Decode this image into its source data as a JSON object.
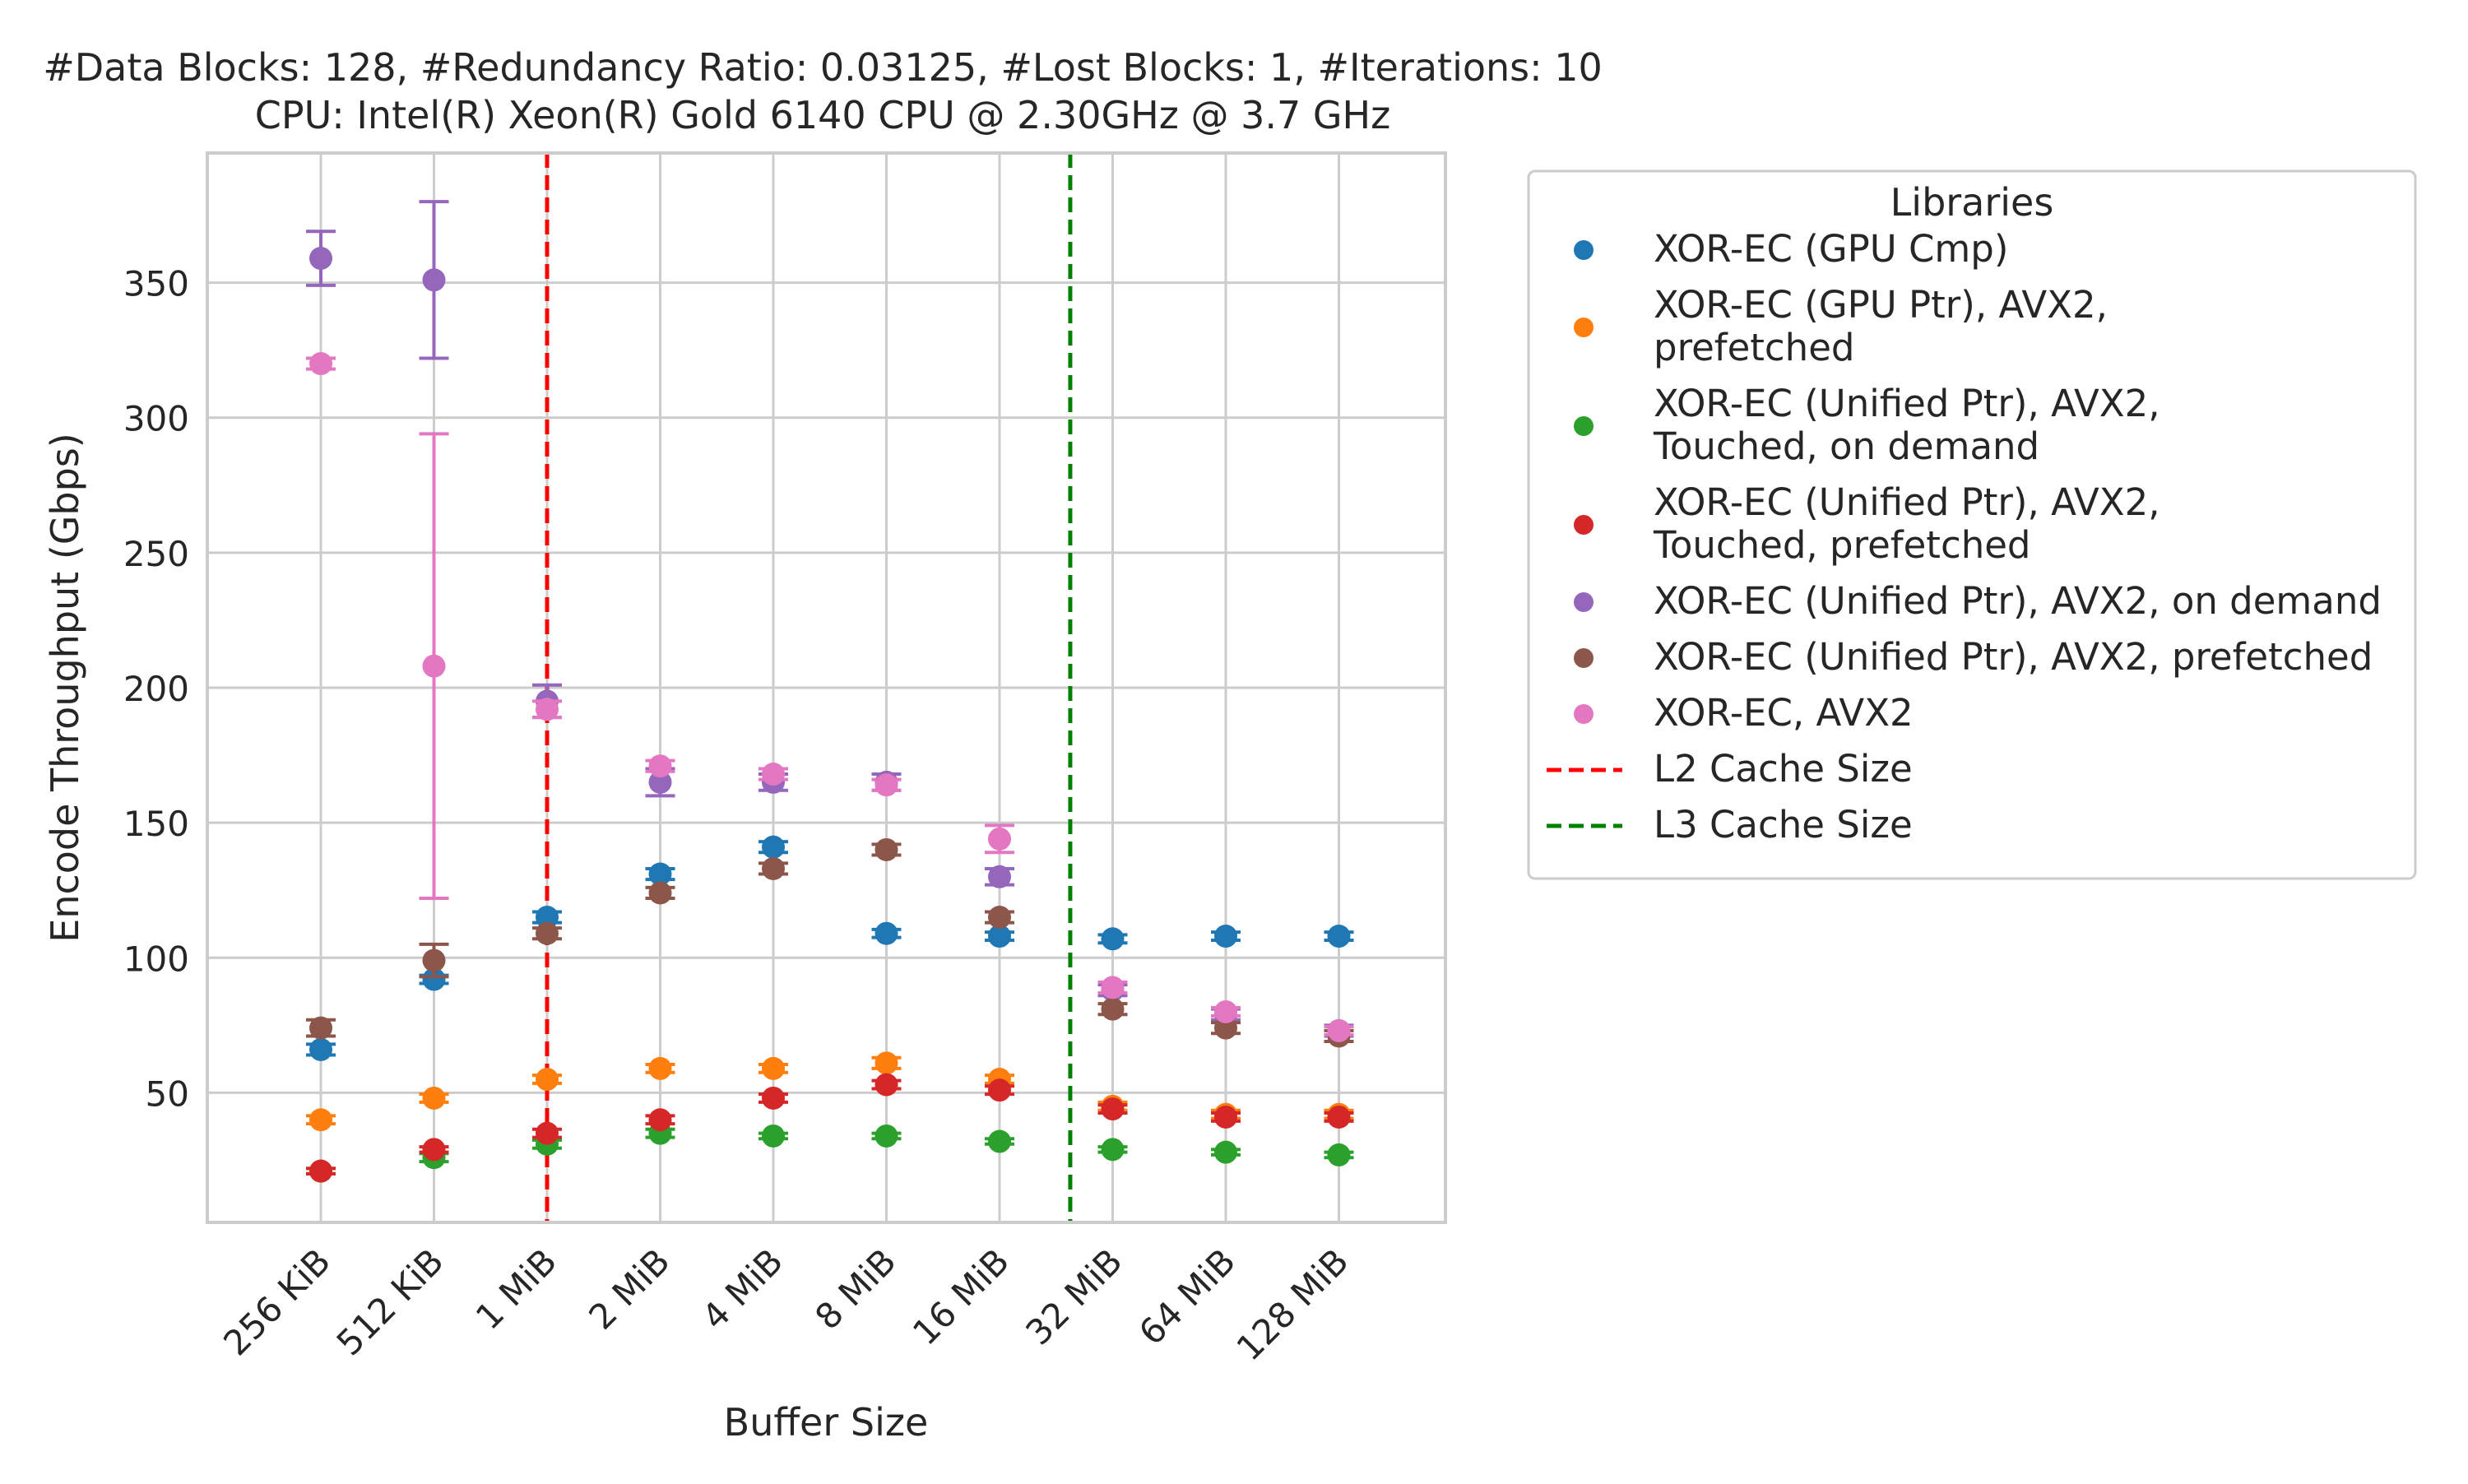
{
  "chart_data": {
    "type": "scatter",
    "title": "#Data Blocks: 128, #Redundancy Ratio: 0.03125, #Lost Blocks: 1, #Iterations: 10",
    "subtitle": "CPU: Intel(R) Xeon(R) Gold 6140 CPU @ 2.30GHz @ 3.7 GHz",
    "xlabel": "Buffer Size",
    "ylabel": "Encode Throughput (Gbps)",
    "categories": [
      "256 KiB",
      "512 KiB",
      "1 MiB",
      "2 MiB",
      "4 MiB",
      "8 MiB",
      "16 MiB",
      "32 MiB",
      "64 MiB",
      "128 MiB"
    ],
    "ylim": [
      2,
      398
    ],
    "yticks": [
      50,
      100,
      150,
      200,
      250,
      300,
      350
    ],
    "ytick_labels": [
      "50",
      "100",
      "150",
      "200",
      "250",
      "300",
      "350"
    ],
    "grid": true,
    "legend": {
      "title": "Libraries",
      "placement": "outside-right"
    },
    "series": [
      {
        "name": "XOR-EC (GPU Cmp)",
        "name_lines": [
          "XOR-EC (GPU Cmp)"
        ],
        "color": "#1f77b4",
        "values": [
          66,
          92,
          115,
          131,
          141,
          109,
          108,
          107,
          108,
          108
        ],
        "err": [
          2,
          1.5,
          2,
          2,
          2,
          1.5,
          1.5,
          1.5,
          1.5,
          1.5
        ]
      },
      {
        "name": "XOR-EC (GPU Ptr), AVX2, prefetched",
        "name_lines": [
          "XOR-EC (GPU Ptr), AVX2,",
          "prefetched"
        ],
        "color": "#ff7f0e",
        "values": [
          40,
          48,
          55,
          59,
          59,
          61,
          55,
          45,
          42,
          42
        ],
        "err": [
          1.5,
          1.5,
          1.5,
          1.5,
          1.5,
          2,
          1.5,
          1.5,
          1.5,
          1.5
        ]
      },
      {
        "name": "XOR-EC (Unified Ptr), AVX2, Touched, on demand",
        "name_lines": [
          "XOR-EC (Unified Ptr), AVX2,",
          "Touched, on demand"
        ],
        "color": "#2ca02c",
        "values": [
          21,
          26,
          31,
          35,
          34,
          34,
          32,
          29,
          28,
          27
        ],
        "err": [
          1,
          1.5,
          1.5,
          1.5,
          1,
          1,
          1,
          1,
          1,
          1
        ]
      },
      {
        "name": "XOR-EC (Unified Ptr), AVX2, Touched, prefetched",
        "name_lines": [
          "XOR-EC (Unified Ptr), AVX2,",
          "Touched, prefetched"
        ],
        "color": "#d62728",
        "values": [
          21,
          29,
          35,
          40,
          48,
          53,
          51,
          44,
          41,
          41
        ],
        "err": [
          1,
          1,
          1.5,
          1.5,
          1.5,
          1.5,
          1.5,
          1.5,
          1.5,
          1.5
        ]
      },
      {
        "name": "XOR-EC (Unified Ptr), AVX2, on demand",
        "name_lines": [
          "XOR-EC (Unified Ptr), AVX2, on demand"
        ],
        "color": "#9467bd",
        "values": [
          359,
          351,
          195,
          165,
          165,
          165,
          130,
          88,
          79,
          73
        ],
        "err": [
          10,
          29,
          6,
          5,
          3,
          3,
          3,
          2,
          2,
          2
        ]
      },
      {
        "name": "XOR-EC (Unified Ptr), AVX2, prefetched",
        "name_lines": [
          "XOR-EC (Unified Ptr), AVX2, prefetched"
        ],
        "color": "#8c564b",
        "values": [
          74,
          99,
          109,
          124,
          133,
          140,
          115,
          81,
          74,
          71
        ],
        "err": [
          3,
          6,
          2,
          2,
          2,
          2,
          2,
          2,
          2,
          2
        ]
      },
      {
        "name": "XOR-EC, AVX2",
        "name_lines": [
          "XOR-EC, AVX2"
        ],
        "color": "#e377c2",
        "values": [
          320,
          208,
          192,
          171,
          168,
          164,
          144,
          89,
          80,
          73
        ],
        "err": [
          2,
          86,
          3,
          2,
          2,
          2,
          5,
          2,
          1.5,
          1.5
        ]
      }
    ],
    "reference_lines": [
      {
        "name": "L2 Cache Size",
        "color": "#ff0000",
        "x_position": 2
      },
      {
        "name": "L3 Cache Size",
        "color": "#008000",
        "x_position": 6.625
      }
    ]
  }
}
